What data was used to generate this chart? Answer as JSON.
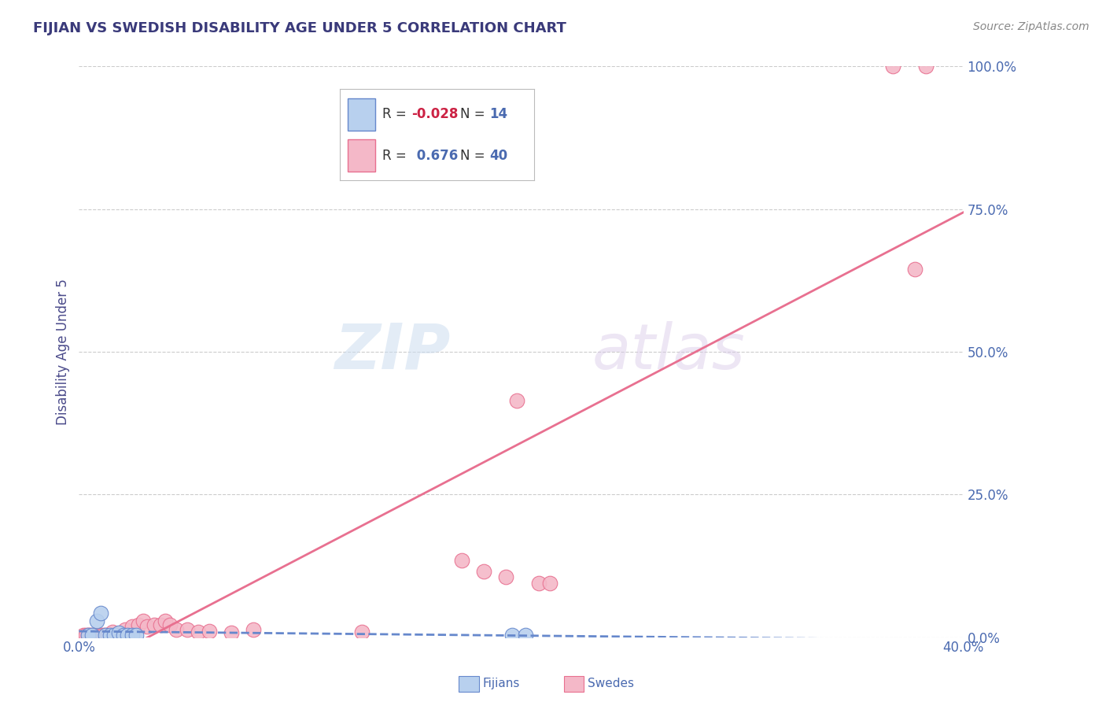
{
  "title": "FIJIAN VS SWEDISH DISABILITY AGE UNDER 5 CORRELATION CHART",
  "source_text": "Source: ZipAtlas.com",
  "xlabel": "Fijians",
  "ylabel": "Disability Age Under 5",
  "xlim": [
    0.0,
    0.4
  ],
  "ylim": [
    0.0,
    1.0
  ],
  "xtick_labels": [
    "0.0%",
    "40.0%"
  ],
  "ytick_labels": [
    "0.0%",
    "25.0%",
    "50.0%",
    "75.0%",
    "100.0%"
  ],
  "ytick_vals": [
    0.0,
    0.25,
    0.5,
    0.75,
    1.0
  ],
  "xtick_vals": [
    0.0,
    0.4
  ],
  "title_color": "#3a3a7a",
  "axis_label_color": "#4a4a8a",
  "tick_color": "#4a6ab0",
  "source_color": "#888888",
  "background_color": "#ffffff",
  "watermark_zip": "ZIP",
  "watermark_atlas": "atlas",
  "fijian_color": "#b8d0ee",
  "fijian_edge_color": "#6688cc",
  "swede_color": "#f4b8c8",
  "swede_edge_color": "#e87090",
  "fijian_line_color": "#6688cc",
  "swede_line_color": "#e87090",
  "legend_R_fijian": "-0.028",
  "legend_N_fijian": "14",
  "legend_R_swede": "0.676",
  "legend_N_swede": "40",
  "fijian_x": [
    0.004,
    0.006,
    0.008,
    0.01,
    0.012,
    0.014,
    0.016,
    0.018,
    0.02,
    0.022,
    0.024,
    0.026,
    0.196,
    0.202
  ],
  "fijian_y": [
    0.004,
    0.004,
    0.028,
    0.042,
    0.004,
    0.004,
    0.004,
    0.008,
    0.004,
    0.004,
    0.004,
    0.004,
    0.004,
    0.004
  ],
  "swede_x": [
    0.002,
    0.003,
    0.004,
    0.005,
    0.006,
    0.007,
    0.008,
    0.009,
    0.01,
    0.011,
    0.012,
    0.013,
    0.015,
    0.017,
    0.019,
    0.021,
    0.024,
    0.027,
    0.029,
    0.031,
    0.034,
    0.037,
    0.039,
    0.041,
    0.044,
    0.049,
    0.054,
    0.059,
    0.069,
    0.079,
    0.128,
    0.173,
    0.183,
    0.193,
    0.198,
    0.208,
    0.213,
    0.368,
    0.378,
    0.383
  ],
  "swede_y": [
    0.004,
    0.004,
    0.004,
    0.004,
    0.004,
    0.004,
    0.004,
    0.004,
    0.004,
    0.004,
    0.004,
    0.004,
    0.009,
    0.004,
    0.004,
    0.013,
    0.018,
    0.022,
    0.028,
    0.018,
    0.022,
    0.022,
    0.028,
    0.022,
    0.013,
    0.013,
    0.009,
    0.011,
    0.007,
    0.013,
    0.009,
    0.135,
    0.115,
    0.105,
    0.415,
    0.095,
    0.095,
    1.0,
    0.645,
    1.0
  ]
}
